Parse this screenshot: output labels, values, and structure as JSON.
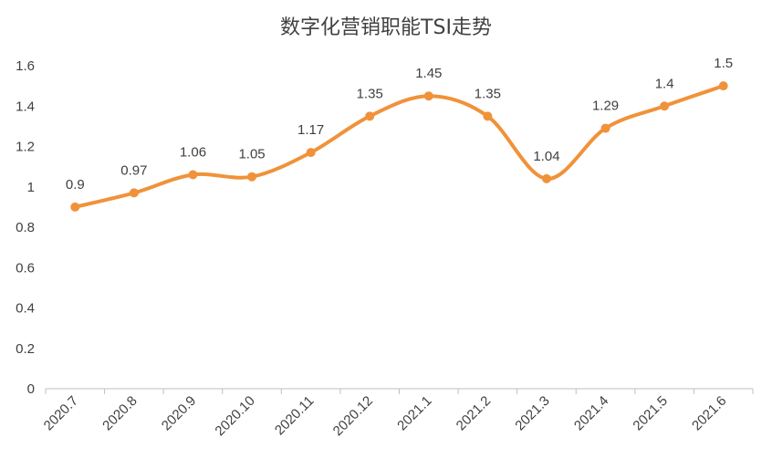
{
  "chart_data": {
    "type": "line",
    "title": "数字化营销职能TSI走势",
    "categories": [
      "2020.7",
      "2020.8",
      "2020.9",
      "2020.10",
      "2020.11",
      "2020.12",
      "2021.1",
      "2021.2",
      "2021.3",
      "2021.4",
      "2021.5",
      "2021.6"
    ],
    "series": [
      {
        "values": [
          0.9,
          0.97,
          1.06,
          1.05,
          1.17,
          1.35,
          1.45,
          1.35,
          1.04,
          1.29,
          1.4,
          1.5
        ]
      }
    ],
    "data_labels": [
      "0.9",
      "0.97",
      "1.06",
      "1.05",
      "1.17",
      "1.35",
      "1.45",
      "1.35",
      "1.04",
      "1.29",
      "1.4",
      "1.5"
    ],
    "yticks": [
      "0",
      "0.2",
      "0.4",
      "0.6",
      "0.8",
      "1",
      "1.2",
      "1.4",
      "1.6"
    ],
    "ylim": [
      0,
      1.6
    ],
    "grid": false,
    "legend": "none",
    "colors": {
      "line": "#F0923A",
      "axis": "#BFBFBF",
      "text": "#404040"
    }
  }
}
